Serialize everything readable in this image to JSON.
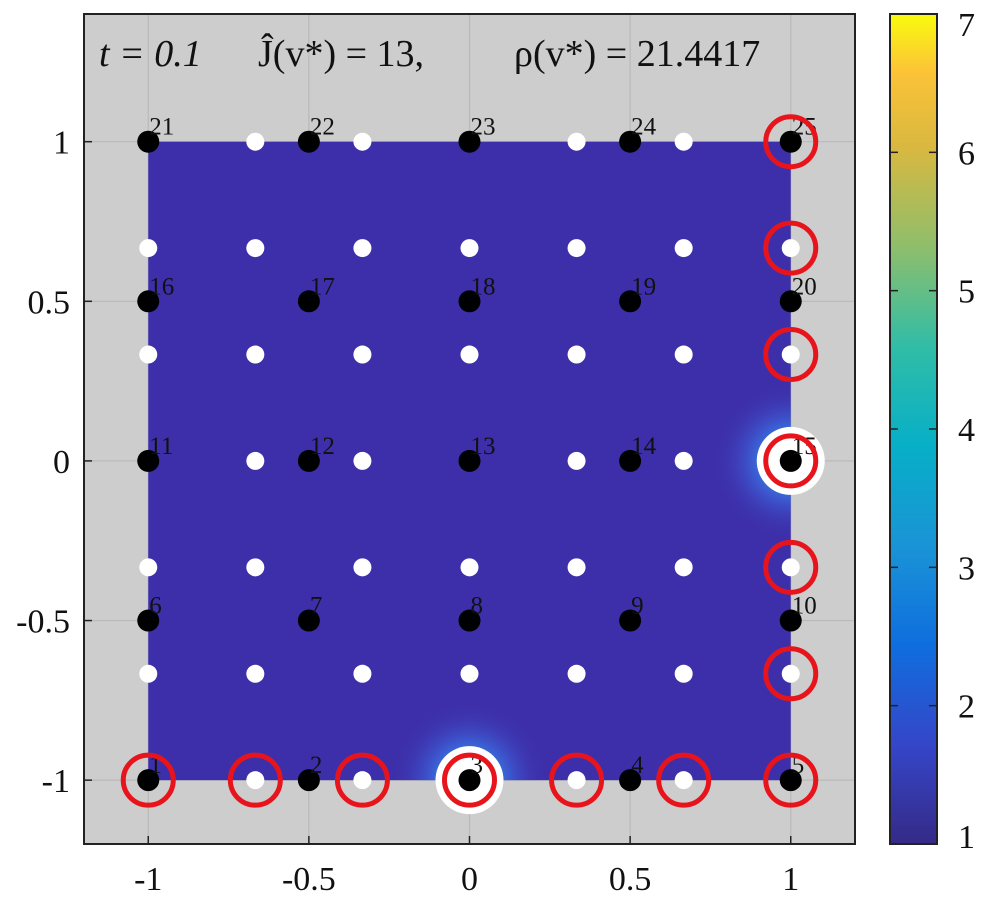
{
  "chart_data": {
    "type": "heatmap",
    "title": {
      "t_part": "t = 0.1",
      "j_part": "Ĵ(v*) = 13,",
      "rho_part": "ρ(v*) = 21.4417"
    },
    "xlabel": "",
    "ylabel": "",
    "xlim": [
      -1.2,
      1.2
    ],
    "ylim": [
      -1.2,
      1.4
    ],
    "xticks": [
      -1,
      -0.5,
      0,
      0.5,
      1
    ],
    "xtick_labels": [
      "-1",
      "-0.5",
      "0",
      "0.5",
      "1"
    ],
    "yticks": [
      -1,
      -0.5,
      0,
      0.5,
      1
    ],
    "ytick_labels": [
      "-1",
      "-0.5",
      "0",
      "0.5",
      "1"
    ],
    "grid": true,
    "colorbar": {
      "min": 1,
      "max": 7,
      "ticks": [
        1,
        2,
        3,
        4,
        5,
        6,
        7
      ],
      "tick_labels": [
        "1",
        "2",
        "3",
        "4",
        "5",
        "6",
        "7"
      ],
      "colormap": "parula"
    },
    "field": {
      "domain_x": [
        -1,
        1
      ],
      "domain_y": [
        -1,
        1
      ],
      "base_value": 1.0,
      "peaks": [
        {
          "x": 1,
          "y": 0,
          "value": 4.0
        },
        {
          "x": 0,
          "y": -1,
          "value": 4.0
        }
      ]
    },
    "black_nodes": {
      "x": [
        -1,
        -0.5,
        0,
        0.5,
        1
      ],
      "y": [
        -1,
        -0.5,
        0,
        0.5,
        1
      ],
      "labels": [
        "1",
        "2",
        "3",
        "4",
        "5",
        "6",
        "7",
        "8",
        "9",
        "10",
        "11",
        "12",
        "13",
        "14",
        "15",
        "16",
        "17",
        "18",
        "19",
        "20",
        "21",
        "22",
        "23",
        "24",
        "25"
      ]
    },
    "white_points": {
      "x": [
        -1,
        -0.6667,
        -0.3333,
        0,
        0.3333,
        0.6667,
        1
      ],
      "y": [
        -1,
        -0.6667,
        -0.3333,
        0,
        0.3333,
        0.6667,
        1
      ]
    },
    "red_circles": [
      {
        "x": -1,
        "y": -1
      },
      {
        "x": -0.6667,
        "y": -1
      },
      {
        "x": -0.3333,
        "y": -1
      },
      {
        "x": 0,
        "y": -1
      },
      {
        "x": 0.3333,
        "y": -1
      },
      {
        "x": 0.6667,
        "y": -1
      },
      {
        "x": 1,
        "y": -1
      },
      {
        "x": 1,
        "y": -0.6667
      },
      {
        "x": 1,
        "y": -0.3333
      },
      {
        "x": 1,
        "y": 0
      },
      {
        "x": 1,
        "y": 0.3333
      },
      {
        "x": 1,
        "y": 0.6667
      },
      {
        "x": 1,
        "y": 1
      }
    ],
    "white_rings": [
      {
        "x": 0,
        "y": -1
      },
      {
        "x": 1,
        "y": 0
      }
    ]
  }
}
